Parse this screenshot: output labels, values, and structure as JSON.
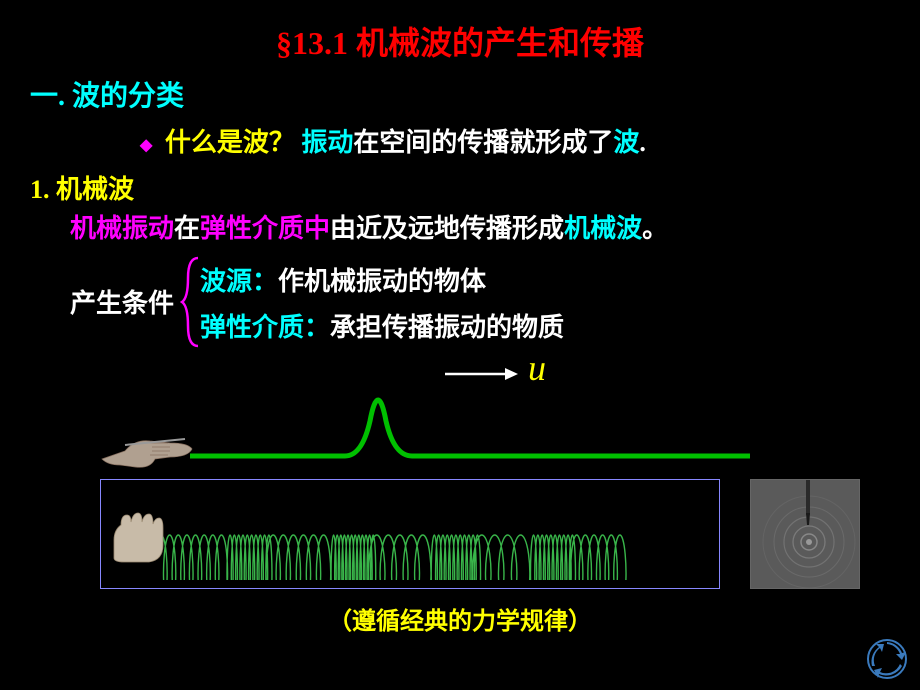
{
  "title": "§13.1   机械波的产生和传播",
  "section_heading": "一. 波的分类",
  "q_bullet": "◆",
  "q_label": "什么是波？",
  "q_ans_a": "振动",
  "q_ans_b": "在空间的传播就形成了",
  "q_ans_c": "波",
  "q_ans_d": ".",
  "sub1": "1. 机械波",
  "def_a": "机械振动",
  "def_b": "在",
  "def_c": "弹性介质中",
  "def_d": "由近及远地传播形成",
  "def_e": "机械波",
  "def_f": "。",
  "cond_label": "产生条件",
  "cond_line1_a": "波源：",
  "cond_line1_b": "作机械振动的物体",
  "cond_line2_a": "弹性介质：",
  "cond_line2_b": "承担传播振动的物质",
  "u_symbol": "u",
  "footer": "（遵循经典的力学规律）",
  "colors": {
    "red": "#ff0000",
    "cyan": "#00ffff",
    "yellow": "#ffff00",
    "magenta": "#ff00ff",
    "white": "#ffffff",
    "green": "#00d000",
    "lightgreen": "#39b54a",
    "bg": "#000000"
  },
  "pulse": {
    "stroke": "#00c000",
    "width": 4
  },
  "arrow": {
    "stroke": "#ffffff",
    "width": 2
  },
  "brace": {
    "stroke": "#ff00ff",
    "width": 2
  },
  "spring": {
    "stroke": "#39b54a",
    "width": 1.5,
    "loops": 52
  }
}
